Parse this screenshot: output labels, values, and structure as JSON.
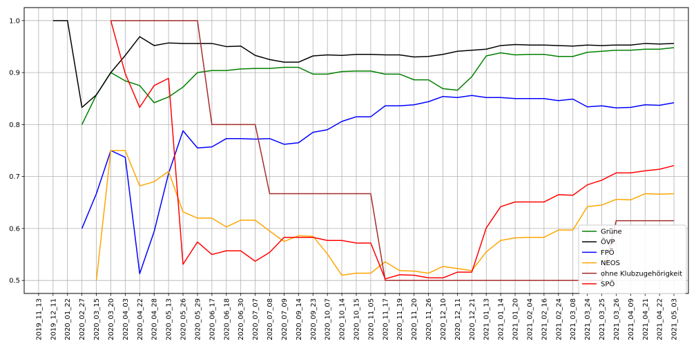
{
  "chart_data": {
    "type": "line",
    "title": "",
    "xlabel": "",
    "ylabel": "",
    "ylim": [
      0.475,
      1.025
    ],
    "yticks": [
      "0.5",
      "0.6",
      "0.7",
      "0.8",
      "0.9",
      "1.0"
    ],
    "grid": true,
    "legend_position": "lower-right",
    "categories": [
      "2019_11_13",
      "2019_12_11",
      "2020_01_22",
      "2020_02_27",
      "2020_03_15",
      "2020_03_20",
      "2020_04_03",
      "2020_04_22",
      "2020_04_28",
      "2020_05_13",
      "2020_05_26",
      "2020_05_29",
      "2020_06_17",
      "2020_06_18",
      "2020_06_30",
      "2020_07_07",
      "2020_07_08",
      "2020_07_09",
      "2020_09_14",
      "2020_09_23",
      "2020_10_07",
      "2020_10_14",
      "2020_10_15",
      "2020_11_05",
      "2020_11_17",
      "2020_11_19",
      "2020_11_20",
      "2020_11_26",
      "2020_12_10",
      "2020_12_11",
      "2020_12_21",
      "2021_01_13",
      "2021_01_14",
      "2021_01_20",
      "2021_02_04",
      "2021_02_16",
      "2021_02_24",
      "2021_03_08",
      "2021_03_24",
      "2021_03_25",
      "2021_03_26",
      "2021_04_09",
      "2021_04_21",
      "2021_04_22",
      "2021_05_03"
    ],
    "series": [
      {
        "name": "Grüne",
        "color": "#008000",
        "values": [
          null,
          null,
          null,
          0.8,
          0.857,
          0.9,
          0.884,
          0.875,
          0.842,
          0.853,
          0.872,
          0.9,
          0.904,
          0.904,
          0.907,
          0.908,
          0.908,
          0.91,
          0.91,
          0.897,
          0.897,
          0.902,
          0.903,
          0.903,
          0.897,
          0.897,
          0.886,
          0.886,
          0.869,
          0.866,
          0.892,
          0.932,
          0.938,
          0.934,
          0.935,
          0.935,
          0.931,
          0.931,
          0.939,
          0.941,
          0.943,
          0.943,
          0.945,
          0.945,
          0.948
        ]
      },
      {
        "name": "ÖVP",
        "color": "#000000",
        "values": [
          null,
          1.0,
          1.0,
          0.833,
          0.857,
          0.9,
          0.933,
          0.969,
          0.952,
          0.957,
          0.956,
          0.956,
          0.956,
          0.95,
          0.951,
          0.933,
          0.925,
          0.92,
          0.92,
          0.932,
          0.934,
          0.933,
          0.935,
          0.935,
          0.934,
          0.934,
          0.93,
          0.931,
          0.935,
          0.941,
          0.943,
          0.945,
          0.952,
          0.954,
          0.953,
          0.953,
          0.952,
          0.951,
          0.953,
          0.952,
          0.953,
          0.953,
          0.956,
          0.955,
          0.956
        ]
      },
      {
        "name": "FPÖ",
        "color": "#0000ff",
        "values": [
          null,
          null,
          null,
          0.6,
          0.667,
          0.75,
          0.737,
          0.513,
          0.594,
          0.706,
          0.788,
          0.755,
          0.757,
          0.773,
          0.773,
          0.772,
          0.773,
          0.762,
          0.765,
          0.785,
          0.79,
          0.806,
          0.815,
          0.815,
          0.836,
          0.836,
          0.838,
          0.844,
          0.854,
          0.852,
          0.856,
          0.852,
          0.852,
          0.85,
          0.85,
          0.85,
          0.846,
          0.849,
          0.834,
          0.836,
          0.832,
          0.833,
          0.838,
          0.837,
          0.842
        ]
      },
      {
        "name": "NEOS",
        "color": "#ffa500",
        "values": [
          null,
          null,
          null,
          null,
          0.5,
          0.75,
          0.75,
          0.682,
          0.69,
          0.71,
          0.632,
          0.62,
          0.62,
          0.603,
          0.616,
          0.616,
          0.595,
          0.575,
          0.586,
          0.585,
          0.551,
          0.51,
          0.514,
          0.514,
          0.536,
          0.519,
          0.518,
          0.514,
          0.527,
          0.523,
          0.519,
          0.555,
          0.577,
          0.582,
          0.583,
          0.583,
          0.597,
          0.597,
          0.642,
          0.645,
          0.656,
          0.655,
          0.667,
          0.666,
          0.667
        ]
      },
      {
        "name": "ohne Klubzugehörigkeit",
        "color": "#a52a2a",
        "values": [
          null,
          null,
          null,
          null,
          null,
          1.0,
          1.0,
          1.0,
          1.0,
          1.0,
          1.0,
          1.0,
          0.8,
          0.8,
          0.8,
          0.8,
          0.667,
          0.667,
          0.667,
          0.667,
          0.667,
          0.667,
          0.667,
          0.667,
          0.5,
          0.5,
          0.5,
          0.5,
          0.5,
          0.5,
          0.5,
          0.5,
          0.5,
          0.5,
          0.5,
          0.5,
          0.5,
          0.5,
          0.5,
          0.5,
          0.615,
          0.615,
          0.615,
          0.615,
          0.615
        ]
      },
      {
        "name": "SPÖ",
        "color": "#ff0000",
        "values": [
          null,
          null,
          null,
          null,
          null,
          1.0,
          0.898,
          0.833,
          0.875,
          0.889,
          0.531,
          0.574,
          0.55,
          0.557,
          0.557,
          0.537,
          0.554,
          0.583,
          0.583,
          0.583,
          0.577,
          0.577,
          0.572,
          0.572,
          0.503,
          0.511,
          0.51,
          0.505,
          0.505,
          0.516,
          0.516,
          0.601,
          0.642,
          0.651,
          0.651,
          0.651,
          0.665,
          0.664,
          0.684,
          0.693,
          0.707,
          0.707,
          0.711,
          0.714,
          0.721
        ]
      }
    ]
  }
}
